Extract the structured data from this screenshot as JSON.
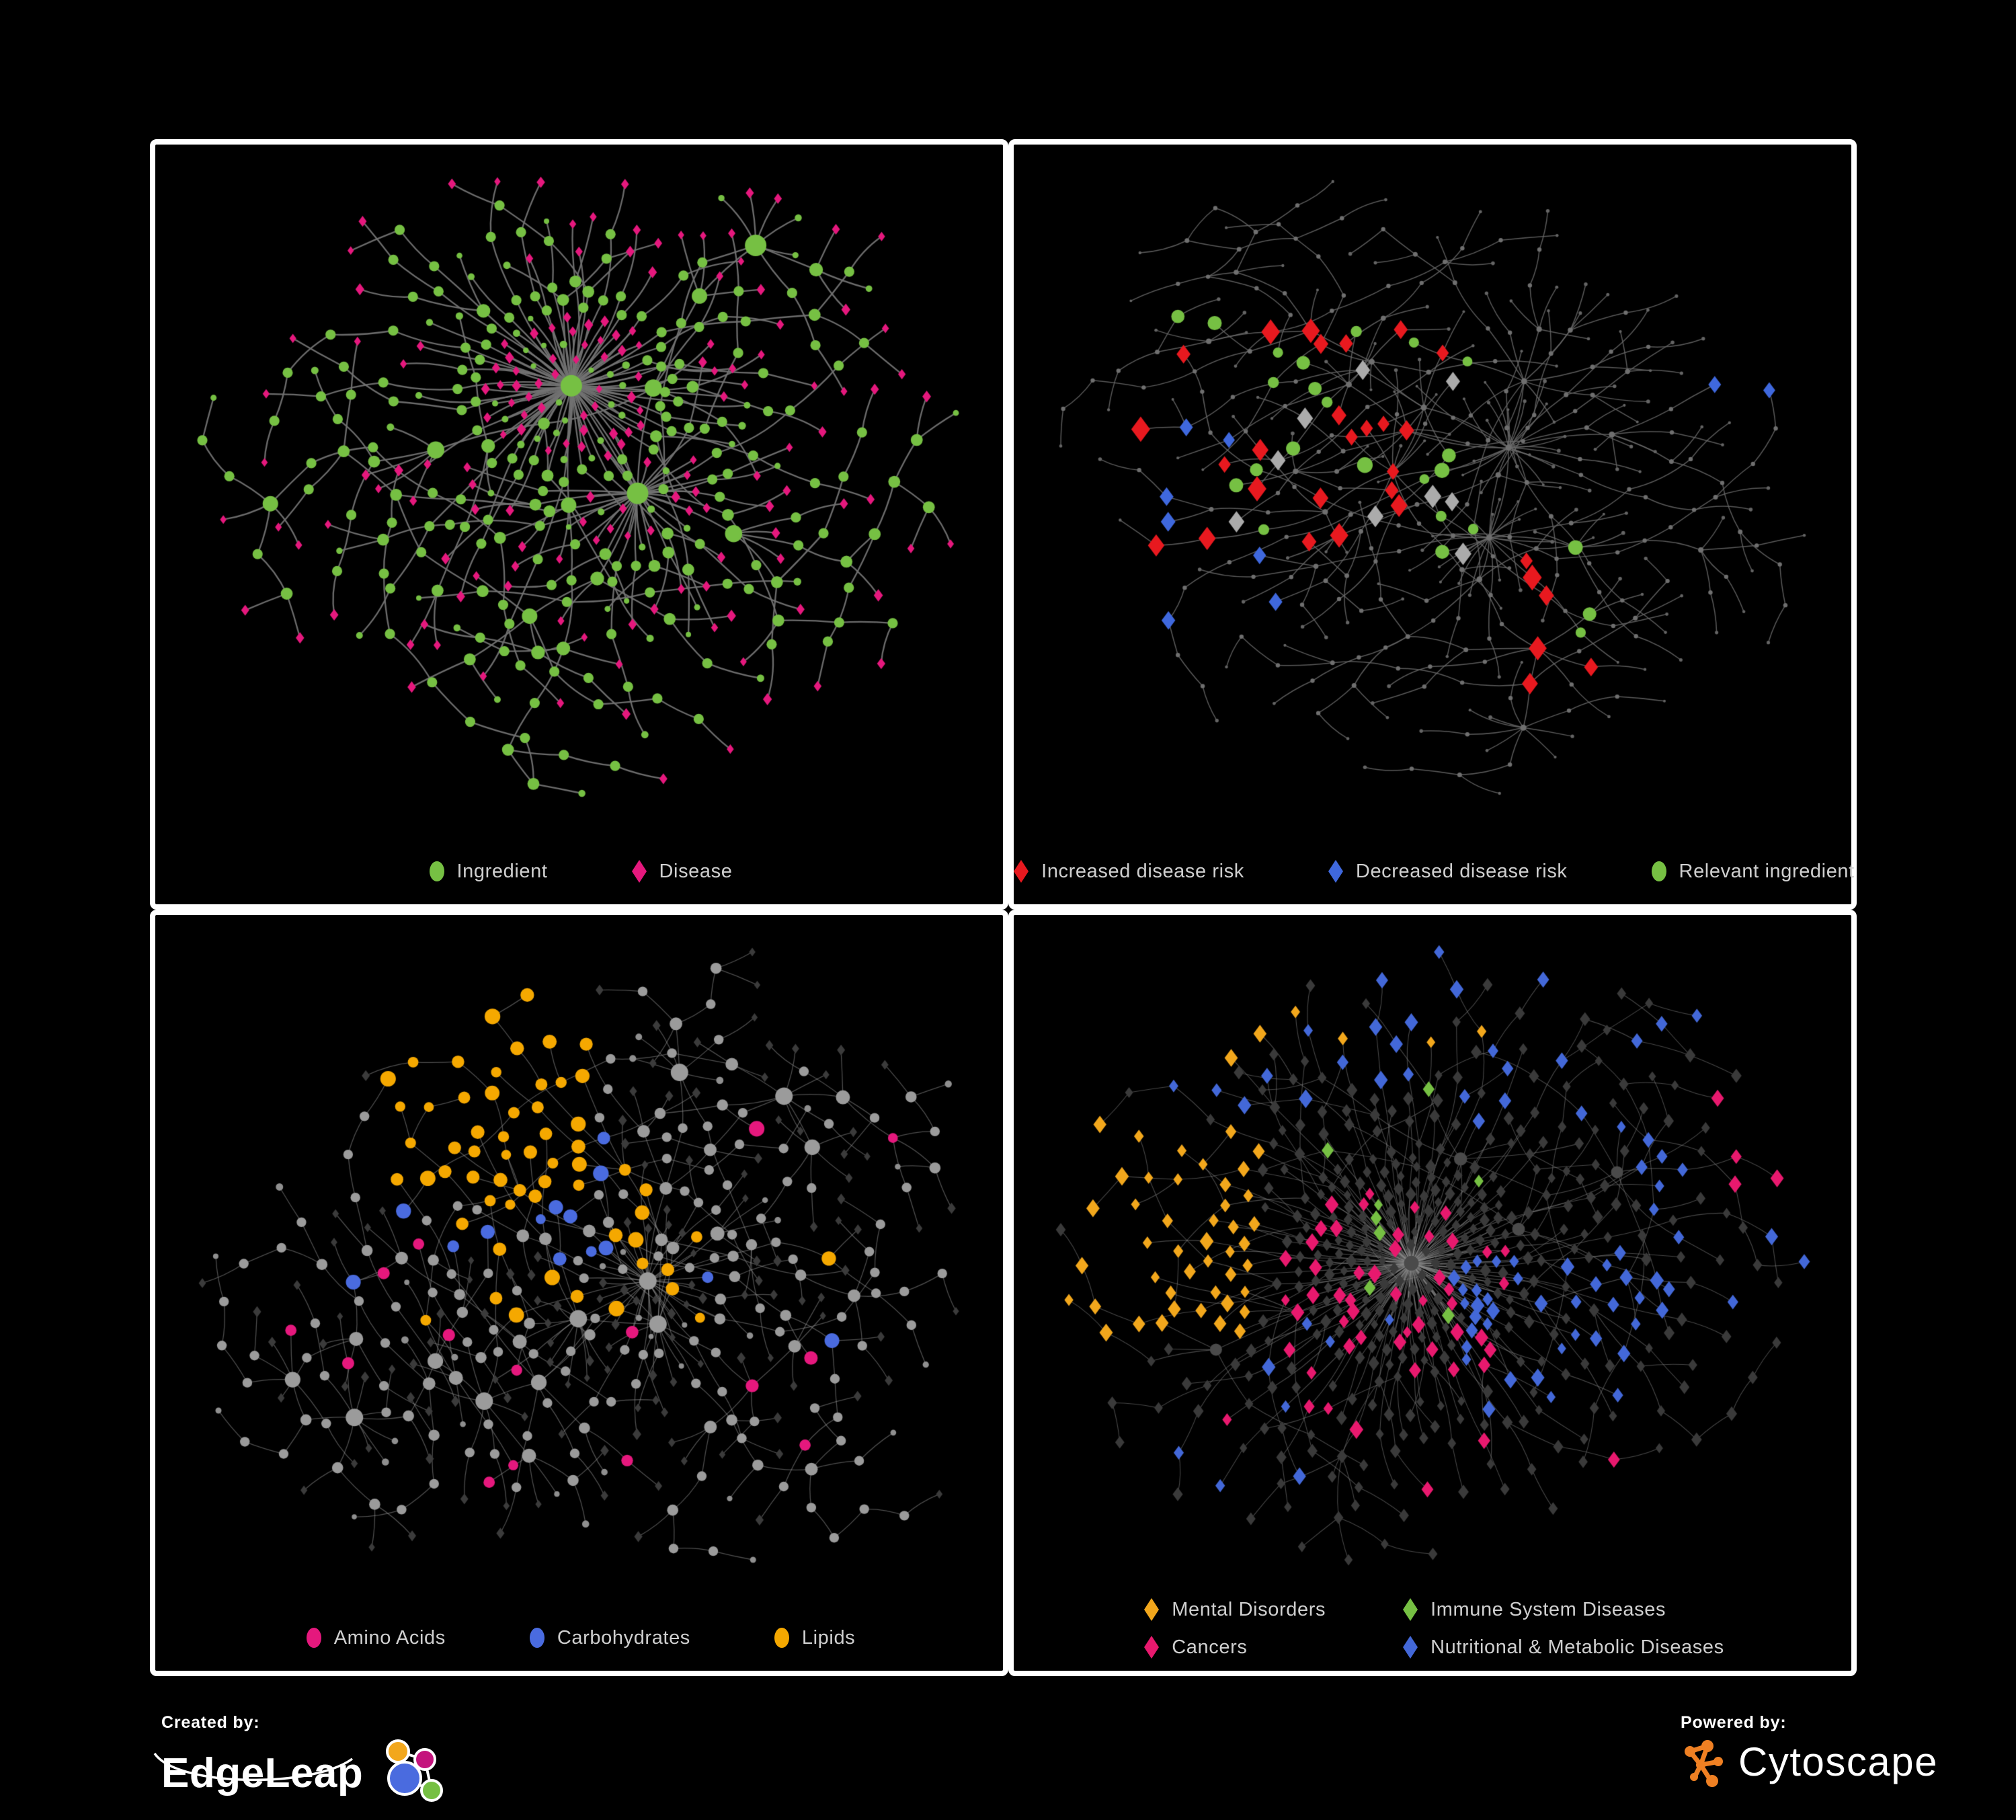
{
  "page": {
    "background": "#000000",
    "panel_border": "#ffffff",
    "legend_text_color": "#cfcfcf"
  },
  "panels": [
    {
      "id": "ingredient-disease",
      "legend": [
        {
          "label": "Ingredient",
          "shape": "ellipse",
          "color": "#76c043"
        },
        {
          "label": "Disease",
          "shape": "diamond",
          "color": "#e5187d"
        }
      ],
      "legend_layout": "row",
      "network": {
        "seed": 11,
        "node_count": 430,
        "chain_p": 0.34,
        "pref_p": 0.42,
        "edge": {
          "color": "#727272",
          "width": 2.3,
          "opacity": 0.95,
          "curve": 0.12
        },
        "base": {
          "inner_min_deg": 2,
          "inner": {
            "shape": "ellipse",
            "color": "#76c043",
            "min": 5,
            "scale": 1.3,
            "max": 16
          },
          "leaf_variants": [
            {
              "shape": "diamond",
              "color": "#e5187d",
              "size": 5.5,
              "weight": 0.76
            },
            {
              "shape": "ellipse",
              "color": "#76c043",
              "size": 4.6,
              "weight": 0.24
            }
          ]
        },
        "highlights": []
      }
    },
    {
      "id": "disease-risk",
      "legend": [
        {
          "label": "Increased disease risk",
          "shape": "diamond",
          "color": "#e8191f"
        },
        {
          "label": "Decreased disease risk",
          "shape": "diamond",
          "color": "#3f68dd"
        },
        {
          "label": "Relevant ingredient",
          "shape": "ellipse",
          "color": "#76c043"
        }
      ],
      "legend_layout": "row",
      "network": {
        "seed": 22,
        "node_count": 430,
        "chain_p": 0.42,
        "pref_p": 0.34,
        "edge": {
          "color": "#686868",
          "width": 1.5,
          "opacity": 0.85,
          "curve": 0.12
        },
        "base": {
          "inner_min_deg": 2,
          "inner": {
            "shape": "ellipse",
            "color": "#6f6f6f",
            "min": 2.6,
            "scale": 0.3,
            "max": 4.5
          },
          "leaf_variants": [
            {
              "shape": "ellipse",
              "color": "#646464",
              "size": 2.3,
              "weight": 1
            }
          ]
        },
        "highlights": [
          {
            "name": "increased-disease-risk",
            "shape": "diamond",
            "color": "#e8191f",
            "size": 11,
            "count": 24,
            "region": [
              0.1,
              0.22,
              0.52,
              0.6
            ]
          },
          {
            "name": "increased-disease-risk",
            "shape": "diamond",
            "color": "#e8191f",
            "size": 11,
            "count": 6,
            "region": [
              0.55,
              0.55,
              0.78,
              0.85
            ]
          },
          {
            "name": "decreased-disease-risk",
            "shape": "diamond",
            "color": "#3f68dd",
            "size": 11,
            "count": 7,
            "region": [
              0.08,
              0.28,
              0.3,
              0.72
            ]
          },
          {
            "name": "decreased-disease-risk",
            "shape": "diamond",
            "color": "#3f68dd",
            "size": 11,
            "count": 2,
            "region": [
              0.85,
              0.28,
              0.99,
              0.42
            ]
          },
          {
            "name": "unlabeled-risk",
            "shape": "diamond",
            "color": "#ababab",
            "size": 10,
            "count": 9,
            "region": [
              0.12,
              0.3,
              0.6,
              0.72
            ]
          },
          {
            "name": "relevant-ingredient",
            "shape": "ellipse",
            "color": "#76c043",
            "size": 9,
            "count": 20,
            "region": [
              0.12,
              0.22,
              0.55,
              0.62
            ]
          },
          {
            "name": "relevant-ingredient",
            "shape": "ellipse",
            "color": "#76c043",
            "size": 9,
            "count": 4,
            "region": [
              0.55,
              0.55,
              0.75,
              0.78
            ]
          }
        ]
      }
    },
    {
      "id": "ingredient-classes",
      "legend": [
        {
          "label": "Amino Acids",
          "shape": "ellipse",
          "color": "#e5187d"
        },
        {
          "label": "Carbohydrates",
          "shape": "ellipse",
          "color": "#4a6bdf"
        },
        {
          "label": "Lipids",
          "shape": "ellipse",
          "color": "#f5a800"
        }
      ],
      "legend_layout": "row",
      "network": {
        "seed": 33,
        "node_count": 440,
        "chain_p": 0.34,
        "pref_p": 0.42,
        "edge": {
          "color": "#9a9a9a",
          "width": 1.3,
          "opacity": 0.5,
          "curve": 0.1
        },
        "base": {
          "inner_min_deg": 2,
          "inner": {
            "shape": "ellipse",
            "color": "#9b9b9b",
            "min": 5,
            "scale": 1.1,
            "max": 13
          },
          "leaf_variants": [
            {
              "shape": "diamond",
              "color": "#3b3b3b",
              "size": 5.2,
              "weight": 0.8
            },
            {
              "shape": "ellipse",
              "color": "#8f8f8f",
              "size": 4.4,
              "weight": 0.2
            }
          ]
        },
        "highlights": [
          {
            "name": "lipids",
            "shape": "ellipse",
            "color": "#f5a800",
            "size": 9,
            "count": 40,
            "region": [
              0.22,
              0.05,
              0.52,
              0.42
            ]
          },
          {
            "name": "lipids",
            "shape": "ellipse",
            "color": "#f5a800",
            "size": 9,
            "count": 14,
            "region": [
              0.28,
              0.35,
              0.6,
              0.62
            ]
          },
          {
            "name": "lipids",
            "shape": "ellipse",
            "color": "#f5a800",
            "size": 9,
            "count": 6,
            "region": [
              0.55,
              0.45,
              0.85,
              0.75
            ]
          },
          {
            "name": "amino-acids",
            "shape": "ellipse",
            "color": "#e5187d",
            "size": 9,
            "count": 15,
            "region": [
              0.02,
              0.2,
              0.95,
              0.92
            ]
          },
          {
            "name": "carbohydrates",
            "shape": "ellipse",
            "color": "#4a6bdf",
            "size": 9,
            "count": 9,
            "region": [
              0.25,
              0.2,
              0.55,
              0.5
            ]
          },
          {
            "name": "carbohydrates",
            "shape": "ellipse",
            "color": "#4a6bdf",
            "size": 9,
            "count": 5,
            "region": [
              0.0,
              0.1,
              0.9,
              0.85
            ]
          }
        ]
      }
    },
    {
      "id": "disease-classes",
      "legend": [
        {
          "label": "Mental Disorders",
          "shape": "diamond",
          "color": "#f2a71c"
        },
        {
          "label": "Immune System Diseases",
          "shape": "diamond",
          "color": "#76c043"
        },
        {
          "label": "Cancers",
          "shape": "diamond",
          "color": "#e8196e"
        },
        {
          "label": "Nutritional & Metabolic Diseases",
          "shape": "diamond",
          "color": "#4368d8"
        }
      ],
      "legend_layout": "two-col",
      "network": {
        "seed": 44,
        "node_count": 560,
        "chain_p": 0.3,
        "pref_p": 0.46,
        "edge": {
          "color": "#8d8d8d",
          "width": 1.1,
          "opacity": 0.5,
          "curve": 0.1
        },
        "base": {
          "inner_min_deg": 5,
          "inner": {
            "shape": "ellipse",
            "color": "#4a4a4a",
            "min": 7,
            "scale": 0.4,
            "max": 11
          },
          "leaf_variants": [
            {
              "shape": "diamond",
              "color": "#3a3a3a",
              "size": 6.5,
              "weight": 1
            }
          ]
        },
        "highlights": [
          {
            "name": "mental-disorders",
            "shape": "diamond",
            "color": "#f2a71c",
            "size": 8,
            "count": 62,
            "region": [
              0.01,
              0.28,
              0.27,
              0.64
            ]
          },
          {
            "name": "mental-disorders",
            "shape": "diamond",
            "color": "#f2a71c",
            "size": 8,
            "count": 6,
            "region": [
              0.1,
              0.0,
              0.6,
              0.2
            ]
          },
          {
            "name": "cancers",
            "shape": "diamond",
            "color": "#e8196e",
            "size": 8,
            "count": 46,
            "region": [
              0.3,
              0.38,
              0.6,
              0.76
            ]
          },
          {
            "name": "cancers",
            "shape": "diamond",
            "color": "#e8196e",
            "size": 8,
            "count": 10,
            "region": [
              0.88,
              0.22,
              1.0,
              0.4
            ]
          },
          {
            "name": "cancers",
            "shape": "diamond",
            "color": "#e8196e",
            "size": 8,
            "count": 6,
            "region": [
              0.1,
              0.75,
              0.9,
              0.98
            ]
          },
          {
            "name": "nutritional-metabolic",
            "shape": "diamond",
            "color": "#4368d8",
            "size": 8,
            "count": 34,
            "region": [
              0.52,
              0.5,
              0.78,
              0.76
            ]
          },
          {
            "name": "nutritional-metabolic",
            "shape": "diamond",
            "color": "#4368d8",
            "size": 8,
            "count": 26,
            "region": [
              0.08,
              0.0,
              0.95,
              0.28
            ]
          },
          {
            "name": "nutritional-metabolic",
            "shape": "diamond",
            "color": "#4368d8",
            "size": 8,
            "count": 16,
            "region": [
              0.75,
              0.28,
              1.0,
              0.62
            ]
          },
          {
            "name": "nutritional-metabolic",
            "shape": "diamond",
            "color": "#4368d8",
            "size": 8,
            "count": 8,
            "region": [
              0.1,
              0.6,
              0.45,
              0.95
            ]
          },
          {
            "name": "immune-system",
            "shape": "diamond",
            "color": "#76c043",
            "size": 8,
            "count": 8,
            "region": [
              0.3,
              0.18,
              0.65,
              0.6
            ]
          }
        ]
      }
    }
  ],
  "footer": {
    "created_by": {
      "prefix": "Created by:",
      "brand": "EdgeLeap",
      "icon": "edgeleap-network-icon",
      "colors": {
        "orange": "#f2a71c",
        "magenta": "#c4147d",
        "blue": "#4a6bdf",
        "green": "#76c043"
      }
    },
    "powered_by": {
      "prefix": "Powered by:",
      "brand": "Cytoscape",
      "icon": "cytoscape-network-icon",
      "color": "#ef8023"
    }
  }
}
